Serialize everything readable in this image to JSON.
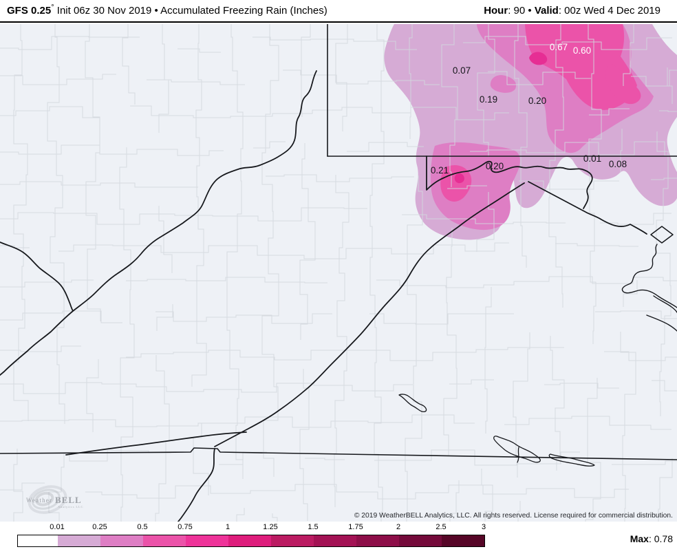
{
  "header": {
    "model": "GFS 0.25",
    "degree": "°",
    "title_rest": " Init 06z 30 Nov 2019 • Accumulated Freezing Rain (Inches)",
    "hour_label": "Hour",
    "hour_value": ": 90",
    "separator": " • ",
    "valid_label": "Valid",
    "valid_value": ": 00z Wed 4 Dec 2019"
  },
  "map": {
    "background": "#eef1f6",
    "county_line_color": "#d3d7de",
    "state_line_color": "#16181c",
    "levels": {
      "l1": "#d6abd5",
      "l2": "#de7ec4",
      "l3": "#eb53a9",
      "l4": "#e62e94"
    },
    "value_labels": [
      {
        "value": "0.07",
        "color": "#15161a"
      },
      {
        "value": "0.67",
        "color": "#ffffff"
      },
      {
        "value": "0.60",
        "color": "#ffffff"
      },
      {
        "value": "0.19",
        "color": "#15161a"
      },
      {
        "value": "0.20",
        "color": "#15161a"
      },
      {
        "value": "0.21",
        "color": "#15161a"
      },
      {
        "value": "0.20",
        "color": "#15161a"
      },
      {
        "value": "0.01",
        "color": "#15161a"
      },
      {
        "value": "0.08",
        "color": "#15161a"
      }
    ]
  },
  "legend": {
    "ticks": [
      "0.01",
      "0.25",
      "0.5",
      "0.75",
      "1",
      "1.25",
      "1.5",
      "1.75",
      "2",
      "2.5",
      "3"
    ],
    "segments": [
      {
        "range": "0-0.01",
        "color": "#ffffff"
      },
      {
        "range": "0.01-0.25",
        "color": "#d6abd5"
      },
      {
        "range": "0.25-0.5",
        "color": "#de7ec4"
      },
      {
        "range": "0.5-0.75",
        "color": "#eb53a9"
      },
      {
        "range": "0.75-1",
        "color": "#ee3399"
      },
      {
        "range": "1-1.25",
        "color": "#de1d7c"
      },
      {
        "range": "1.25-1.5",
        "color": "#bb1b62"
      },
      {
        "range": "1.5-1.75",
        "color": "#a31254"
      },
      {
        "range": "1.75-2",
        "color": "#8d0e48"
      },
      {
        "range": "2-2.5",
        "color": "#740a3a"
      },
      {
        "range": "2.5-3",
        "color": "#560627"
      }
    ],
    "max_label": "Max",
    "max_value": ": 0.78"
  },
  "branding": {
    "logo_weather": "Weather",
    "logo_bell": "BELL",
    "logo_sub": "Analytics LLC",
    "copyright": "© 2019 WeatherBELL Analytics, LLC. All rights reserved. License required for commercial distribution."
  }
}
